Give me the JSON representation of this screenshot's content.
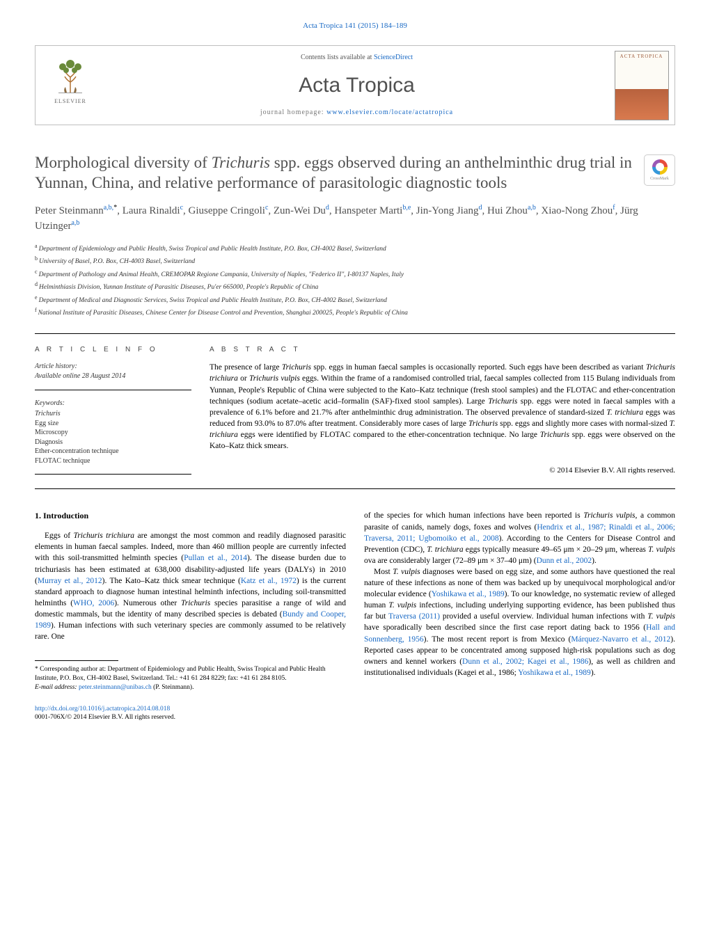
{
  "header_citation": "Acta Tropica 141 (2015) 184–189",
  "banner": {
    "elsevier": "ELSEVIER",
    "contents_prefix": "Contents lists available at ",
    "contents_link": "ScienceDirect",
    "journal_name": "Acta Tropica",
    "homepage_prefix": "journal homepage: ",
    "homepage_link": "www.elsevier.com/locate/actatropica",
    "cover_text": "ACTA TROPICA"
  },
  "title_parts": {
    "pre": "Morphological diversity of ",
    "it1": "Trichuris",
    "post": " spp. eggs observed during an anthelminthic drug trial in Yunnan, China, and relative performance of parasitologic diagnostic tools"
  },
  "crossmark_label": "CrossMark",
  "authors": [
    {
      "name": "Peter Steinmann",
      "aff": "a,b,",
      "star": "*"
    },
    {
      "name": "Laura Rinaldi",
      "aff": "c"
    },
    {
      "name": "Giuseppe Cringoli",
      "aff": "c"
    },
    {
      "name": "Zun-Wei Du",
      "aff": "d"
    },
    {
      "name": "Hanspeter Marti",
      "aff": "b,e"
    },
    {
      "name": "Jin-Yong Jiang",
      "aff": "d"
    },
    {
      "name": "Hui Zhou",
      "aff": "a,b"
    },
    {
      "name": "Xiao-Nong Zhou",
      "aff": "f"
    },
    {
      "name": "Jürg Utzinger",
      "aff": "a,b"
    }
  ],
  "affiliations": [
    {
      "sup": "a",
      "text": "Department of Epidemiology and Public Health, Swiss Tropical and Public Health Institute, P.O. Box, CH-4002 Basel, Switzerland"
    },
    {
      "sup": "b",
      "text": "University of Basel, P.O. Box, CH-4003 Basel, Switzerland"
    },
    {
      "sup": "c",
      "text": "Department of Pathology and Animal Health, CREMOPAR Regione Campania, University of Naples, \"Federico II\", I-80137 Naples, Italy"
    },
    {
      "sup": "d",
      "text": "Helminthiasis Division, Yunnan Institute of Parasitic Diseases, Pu'er 665000, People's Republic of China"
    },
    {
      "sup": "e",
      "text": "Department of Medical and Diagnostic Services, Swiss Tropical and Public Health Institute, P.O. Box, CH-4002 Basel, Switzerland"
    },
    {
      "sup": "f",
      "text": "National Institute of Parasitic Diseases, Chinese Center for Disease Control and Prevention, Shanghai 200025, People's Republic of China"
    }
  ],
  "article_info_head": "A R T I C L E   I N F O",
  "abstract_head": "A B S T R A C T",
  "history_label": "Article history:",
  "history_line": "Available online 28 August 2014",
  "keywords_label": "Keywords:",
  "keywords": [
    "Trichuris",
    "Egg size",
    "Microscopy",
    "Diagnosis",
    "Ether-concentration technique",
    "FLOTAC technique"
  ],
  "abstract": "The presence of large Trichuris spp. eggs in human faecal samples is occasionally reported. Such eggs have been described as variant Trichuris trichiura or Trichuris vulpis eggs. Within the frame of a randomised controlled trial, faecal samples collected from 115 Bulang individuals from Yunnan, People's Republic of China were subjected to the Kato–Katz technique (fresh stool samples) and the FLOTAC and ether-concentration techniques (sodium acetate–acetic acid–formalin (SAF)-fixed stool samples). Large Trichuris spp. eggs were noted in faecal samples with a prevalence of 6.1% before and 21.7% after anthelminthic drug administration. The observed prevalence of standard-sized T. trichiura eggs was reduced from 93.0% to 87.0% after treatment. Considerably more cases of large Trichuris spp. eggs and slightly more cases with normal-sized T. trichiura eggs were identified by FLOTAC compared to the ether-concentration technique. No large Trichuris spp. eggs were observed on the Kato–Katz thick smears.",
  "copyright": "© 2014 Elsevier B.V. All rights reserved.",
  "intro_heading": "1. Introduction",
  "intro_col1": "Eggs of Trichuris trichiura are amongst the most common and readily diagnosed parasitic elements in human faecal samples. Indeed, more than 460 million people are currently infected with this soil-transmitted helminth species (Pullan et al., 2014). The disease burden due to trichuriasis has been estimated at 638,000 disability-adjusted life years (DALYs) in 2010 (Murray et al., 2012). The Kato–Katz thick smear technique (Katz et al., 1972) is the current standard approach to diagnose human intestinal helminth infections, including soil-transmitted helminths (WHO, 2006). Numerous other Trichuris species parasitise a range of wild and domestic mammals, but the identity of many described species is debated (Bundy and Cooper, 1989). Human infections with such veterinary species are commonly assumed to be relatively rare. One",
  "intro_col2_p1": "of the species for which human infections have been reported is Trichuris vulpis, a common parasite of canids, namely dogs, foxes and wolves (Hendrix et al., 1987; Rinaldi et al., 2006; Traversa, 2011; Ugbomoiko et al., 2008). According to the Centers for Disease Control and Prevention (CDC), T. trichiura eggs typically measure 49–65 μm × 20–29 μm, whereas T. vulpis ova are considerably larger (72–89 μm × 37–40 μm) (Dunn et al., 2002).",
  "intro_col2_p2": "Most T. vulpis diagnoses were based on egg size, and some authors have questioned the real nature of these infections as none of them was backed up by unequivocal morphological and/or molecular evidence (Yoshikawa et al., 1989). To our knowledge, no systematic review of alleged human T. vulpis infections, including underlying supporting evidence, has been published thus far but Traversa (2011) provided a useful overview. Individual human infections with T. vulpis have sporadically been described since the first case report dating back to 1956 (Hall and Sonnenberg, 1956). The most recent report is from Mexico (Márquez-Navarro et al., 2012). Reported cases appear to be concentrated among supposed high-risk populations such as dog owners and kennel workers (Dunn et al., 2002; Kagei et al., 1986), as well as children and institutionalised individuals (Kagei et al., 1986; Yoshikawa et al., 1989).",
  "footnote_corresponding": "* Corresponding author at: Department of Epidemiology and Public Health, Swiss Tropical and Public Health Institute, P.O. Box, CH-4002 Basel, Switzerland. Tel.: +41 61 284 8229; fax: +41 61 284 8105.",
  "footnote_email_label": "E-mail address: ",
  "footnote_email": "peter.steinmann@unibas.ch",
  "footnote_email_who": " (P. Steinmann).",
  "doi_link": "http://dx.doi.org/10.1016/j.actatropica.2014.08.018",
  "doi_copyright": "0001-706X/© 2014 Elsevier B.V. All rights reserved.",
  "links": {
    "pullan": "Pullan et al., 2014",
    "murray": "Murray et al., 2012",
    "katz": "Katz et al., 1972",
    "who": "WHO, 2006",
    "bundy": "Bundy and Cooper, 1989",
    "hendrix": "Hendrix et al., 1987; Rinaldi et al., 2006; Traversa, 2011; Ugbomoiko et al., 2008",
    "dunn": "Dunn et al., 2002",
    "yoshi": "Yoshikawa et al., 1989",
    "traversa": "Traversa (2011)",
    "hall": "Hall and Sonnenberg, 1956",
    "marquez": "Márquez-Navarro et al., 2012",
    "dunn_kagei": "Dunn et al., 2002; Kagei et al., 1986",
    "kagei_yoshi": "Kagei et al., 1986; Yoshikawa et al., 1989"
  },
  "colors": {
    "link": "#1768c4",
    "heading_gray": "#505050",
    "rule": "#000000",
    "box_border": "#bfbfbf"
  }
}
